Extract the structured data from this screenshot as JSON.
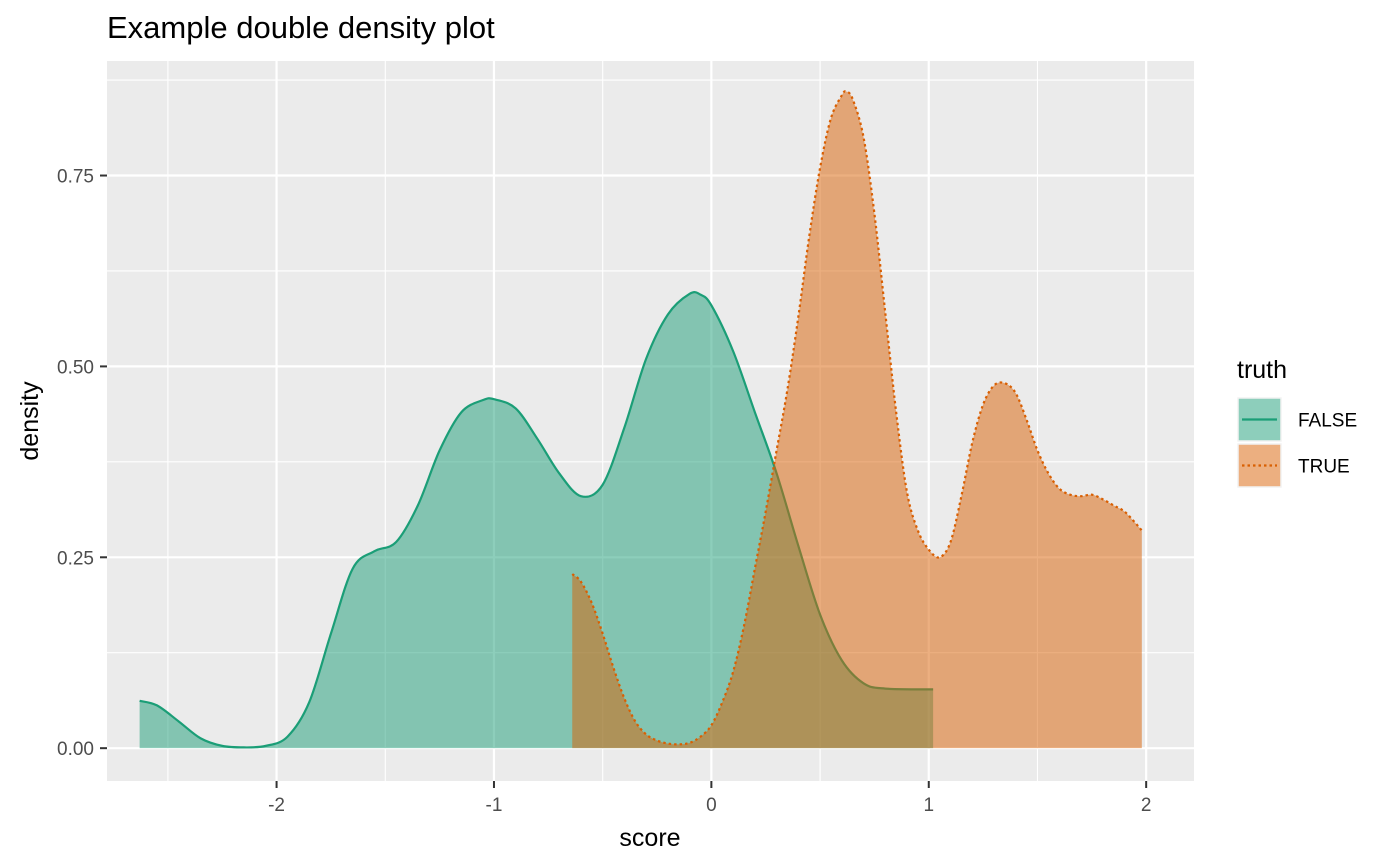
{
  "chart_data": {
    "type": "area",
    "title": "Example double density plot",
    "xlabel": "score",
    "ylabel": "density",
    "xlim": [
      -2.78,
      2.22
    ],
    "ylim": [
      -0.043,
      0.9
    ],
    "x_ticks": [
      -2,
      -1,
      0,
      1,
      2
    ],
    "x_tick_labels": [
      "-2",
      "-1",
      "0",
      "1",
      "2"
    ],
    "y_ticks": [
      0,
      0.25,
      0.5,
      0.75
    ],
    "y_tick_labels": [
      "0.00",
      "0.25",
      "0.50",
      "0.75"
    ],
    "grid": true,
    "background_color": "#ebebeb",
    "legend": {
      "title": "truth",
      "position": "right"
    },
    "series": [
      {
        "name": "FALSE",
        "color": "#1b9e77",
        "fill_alpha": 0.5,
        "line_style": "solid",
        "x": [
          -2.63,
          -2.55,
          -2.45,
          -2.35,
          -2.25,
          -2.15,
          -2.05,
          -1.95,
          -1.85,
          -1.75,
          -1.65,
          -1.55,
          -1.45,
          -1.35,
          -1.25,
          -1.15,
          -1.05,
          -1.0,
          -0.9,
          -0.8,
          -0.7,
          -0.6,
          -0.5,
          -0.4,
          -0.3,
          -0.2,
          -0.1,
          -0.05,
          0.0,
          0.1,
          0.2,
          0.3,
          0.4,
          0.5,
          0.6,
          0.7,
          0.8,
          1.02
        ],
        "y": [
          0.062,
          0.056,
          0.035,
          0.013,
          0.003,
          0.001,
          0.003,
          0.015,
          0.06,
          0.15,
          0.235,
          0.258,
          0.27,
          0.318,
          0.39,
          0.44,
          0.456,
          0.457,
          0.445,
          0.405,
          0.36,
          0.33,
          0.345,
          0.42,
          0.51,
          0.568,
          0.595,
          0.594,
          0.58,
          0.52,
          0.44,
          0.36,
          0.265,
          0.175,
          0.115,
          0.085,
          0.078,
          0.077
        ]
      },
      {
        "name": "TRUE",
        "color": "#d95f02",
        "fill_alpha": 0.5,
        "line_style": "dotted",
        "x": [
          -0.64,
          -0.6,
          -0.55,
          -0.5,
          -0.45,
          -0.4,
          -0.35,
          -0.3,
          -0.25,
          -0.2,
          -0.15,
          -0.1,
          -0.05,
          0.0,
          0.05,
          0.1,
          0.15,
          0.2,
          0.25,
          0.3,
          0.35,
          0.4,
          0.45,
          0.5,
          0.55,
          0.6,
          0.62,
          0.65,
          0.7,
          0.75,
          0.8,
          0.85,
          0.9,
          0.95,
          1.0,
          1.05,
          1.1,
          1.15,
          1.2,
          1.25,
          1.3,
          1.35,
          1.4,
          1.45,
          1.5,
          1.55,
          1.6,
          1.65,
          1.7,
          1.75,
          1.8,
          1.85,
          1.9,
          1.95,
          1.98
        ],
        "y": [
          0.228,
          0.218,
          0.19,
          0.15,
          0.105,
          0.065,
          0.035,
          0.018,
          0.01,
          0.006,
          0.005,
          0.007,
          0.015,
          0.03,
          0.06,
          0.1,
          0.16,
          0.235,
          0.31,
          0.39,
          0.47,
          0.565,
          0.67,
          0.76,
          0.825,
          0.855,
          0.86,
          0.85,
          0.8,
          0.7,
          0.57,
          0.44,
          0.335,
          0.285,
          0.26,
          0.25,
          0.27,
          0.33,
          0.4,
          0.45,
          0.475,
          0.478,
          0.465,
          0.43,
          0.39,
          0.36,
          0.34,
          0.332,
          0.33,
          0.332,
          0.326,
          0.318,
          0.31,
          0.295,
          0.285
        ]
      }
    ]
  }
}
